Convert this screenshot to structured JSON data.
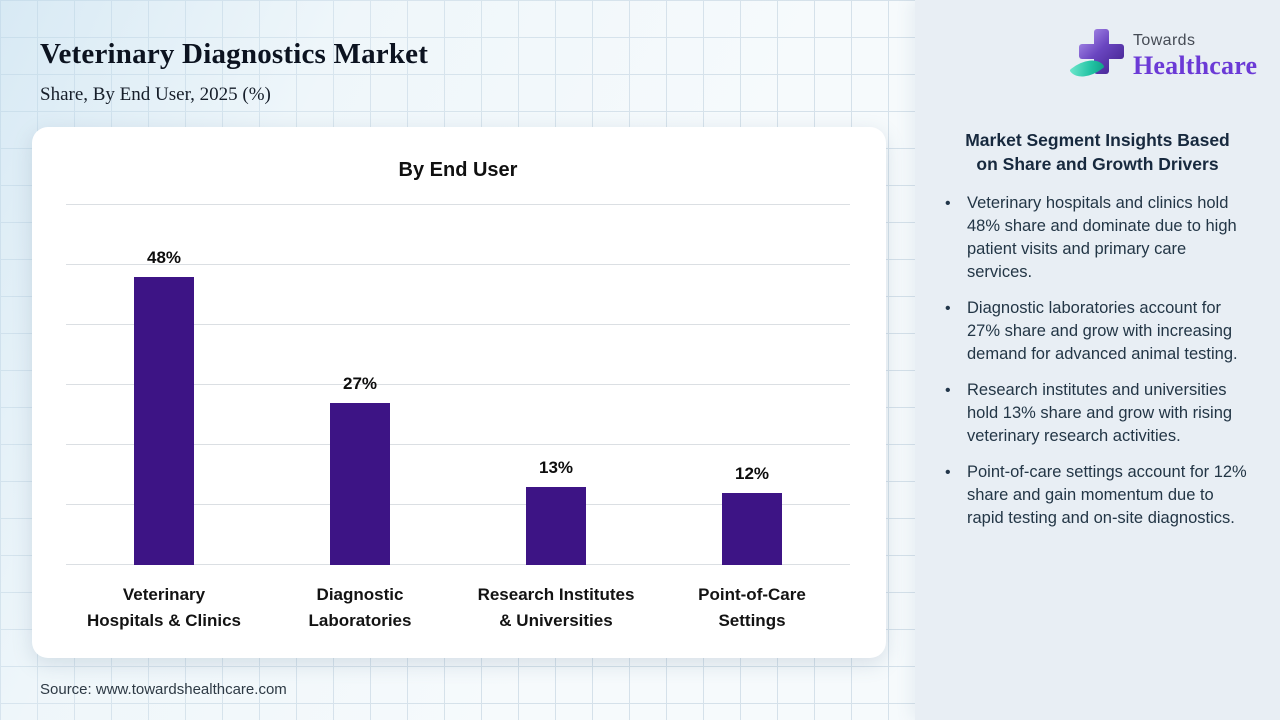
{
  "header": {
    "title": "Veterinary Diagnostics Market",
    "subtitle": "Share, By End User, 2025 (%)"
  },
  "logo": {
    "line1": "Towards",
    "line2": "Healthcare",
    "accent_purple": "#6b3ad6",
    "cross_purple": "#5b34a8",
    "leaf_teal": "#23c3a4"
  },
  "chart_data": {
    "type": "bar",
    "title": "By End User",
    "categories": [
      "Veterinary Hospitals & Clinics",
      "Diagnostic Laboratories",
      "Research Institutes & Universities",
      "Point-of-Care Settings"
    ],
    "category_lines": [
      [
        "Veterinary",
        "Hospitals & Clinics"
      ],
      [
        "Diagnostic",
        "Laboratories"
      ],
      [
        "Research Institutes",
        "& Universities"
      ],
      [
        "Point-of-Care",
        "Settings"
      ]
    ],
    "values": [
      48,
      27,
      13,
      12
    ],
    "unit": "%",
    "xlabel": "",
    "ylabel": "",
    "ylim": [
      0,
      60
    ],
    "gridline_step": 10,
    "grid": true,
    "legend": false,
    "bar_color": "#3d1485"
  },
  "sidebar": {
    "heading_lines": [
      "Market Segment Insights Based",
      "on Share and Growth Drivers"
    ],
    "bullets": [
      "Veterinary hospitals and clinics hold 48% share and dominate due to high patient visits and primary care services.",
      "Diagnostic laboratories account for 27% share and grow with increasing demand for advanced animal testing.",
      "Research institutes and universities hold 13% share and grow with rising veterinary research activities.",
      "Point-of-care settings account for 12% share and gain momentum due to rapid testing and on-site diagnostics."
    ]
  },
  "footer": {
    "source": "Source: www.towardshealthcare.com"
  }
}
